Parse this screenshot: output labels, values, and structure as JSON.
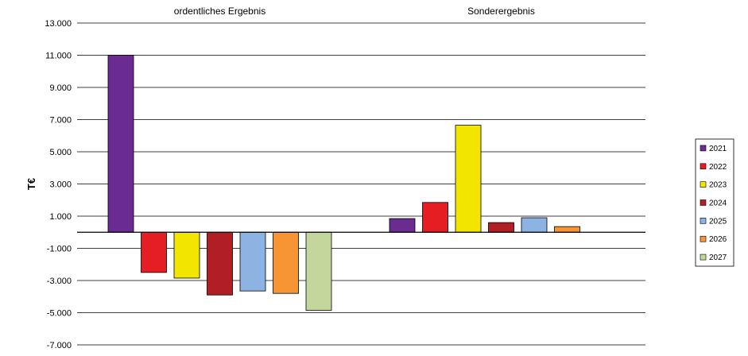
{
  "chart_data": {
    "type": "bar",
    "categories": [
      "ordentliches Ergebnis",
      "Sonderergebnis"
    ],
    "series": [
      {
        "name": "2021",
        "color": "#6a2c91",
        "values": [
          11000,
          850
        ]
      },
      {
        "name": "2022",
        "color": "#e51e24",
        "values": [
          -2500,
          1850
        ]
      },
      {
        "name": "2023",
        "color": "#f2e600",
        "values": [
          -2850,
          6650
        ]
      },
      {
        "name": "2024",
        "color": "#b11e24",
        "values": [
          -3900,
          600
        ]
      },
      {
        "name": "2025",
        "color": "#8db3e2",
        "values": [
          -3650,
          900
        ]
      },
      {
        "name": "2026",
        "color": "#f79433",
        "values": [
          -3800,
          350
        ]
      },
      {
        "name": "2027",
        "color": "#c3d69b",
        "values": [
          -4850,
          null
        ]
      }
    ],
    "ylabel": "T€",
    "ylim": [
      -7000,
      13000
    ],
    "yticks": [
      13000,
      11000,
      9000,
      7000,
      5000,
      3000,
      1000,
      -1000,
      -3000,
      -5000,
      -7000
    ],
    "ytick_labels": [
      "13.000",
      "11.000",
      "9.000",
      "7.000",
      "5.000",
      "3.000",
      "1.000",
      "-1.000",
      "-3.000",
      "-5.000",
      "-7.000"
    ],
    "grid": true,
    "legend_position": "right"
  }
}
